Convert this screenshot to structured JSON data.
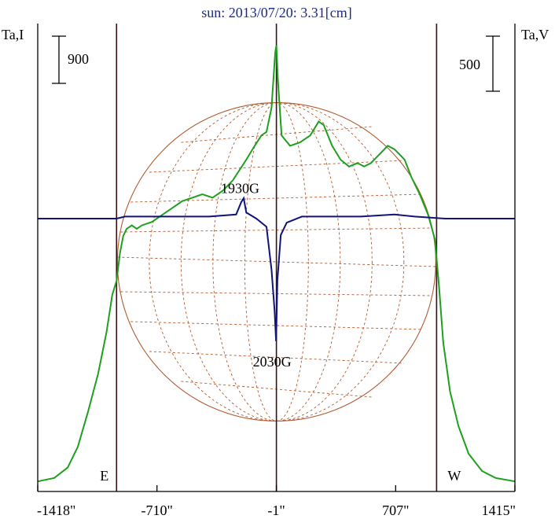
{
  "chart_data": {
    "type": "line",
    "title": "sun: 2013/07/20: 3.31[cm]",
    "left_axis_label": "Ta,I",
    "right_axis_label": "Ta,V",
    "left_scale_bar_label": "900",
    "right_scale_bar_label": "500",
    "x_tick_labels": [
      "-1418\"",
      "-710\"",
      "-1\"",
      "707\"",
      "1415\""
    ],
    "x_ticks": [
      -1418,
      -710,
      -1,
      707,
      1415
    ],
    "xlim": [
      -1418,
      1415
    ],
    "limb_markers": {
      "east": -950,
      "west": 950
    },
    "east_label": "E",
    "west_label": "W",
    "solar_radius_arcsec": 945,
    "annotations": [
      {
        "text": "1930G",
        "x": -200,
        "level": 0.84
      },
      {
        "text": "2030G",
        "x": -1,
        "level": 0.35
      }
    ],
    "colors": {
      "title": "#1a2a8a",
      "stokes_i": "#1ea01e",
      "stokes_v": "#10147a",
      "grid": "#b05a30",
      "limb_lines": "#3a1010",
      "axes": "#000000"
    },
    "series": [
      {
        "name": "Ta,I",
        "values": [
          [
            -1418,
            0.02
          ],
          [
            -1320,
            0.03
          ],
          [
            -1240,
            0.06
          ],
          [
            -1180,
            0.12
          ],
          [
            -1120,
            0.22
          ],
          [
            -1060,
            0.33
          ],
          [
            -1010,
            0.45
          ],
          [
            -975,
            0.56
          ],
          [
            -950,
            0.6
          ],
          [
            -930,
            0.68
          ],
          [
            -910,
            0.73
          ],
          [
            -890,
            0.75
          ],
          [
            -860,
            0.76
          ],
          [
            -830,
            0.75
          ],
          [
            -800,
            0.76
          ],
          [
            -740,
            0.77
          ],
          [
            -680,
            0.79
          ],
          [
            -620,
            0.81
          ],
          [
            -560,
            0.83
          ],
          [
            -500,
            0.84
          ],
          [
            -440,
            0.85
          ],
          [
            -380,
            0.84
          ],
          [
            -320,
            0.86
          ],
          [
            -260,
            0.89
          ],
          [
            -220,
            0.92
          ],
          [
            -180,
            0.95
          ],
          [
            -130,
            0.99
          ],
          [
            -90,
            1.02
          ],
          [
            -60,
            1.03
          ],
          [
            -30,
            1.1
          ],
          [
            -8,
            1.26
          ],
          [
            -1,
            1.28
          ],
          [
            8,
            1.18
          ],
          [
            30,
            1.02
          ],
          [
            80,
            0.99
          ],
          [
            140,
            1.0
          ],
          [
            200,
            1.02
          ],
          [
            250,
            1.06
          ],
          [
            280,
            1.05
          ],
          [
            330,
            0.99
          ],
          [
            380,
            0.95
          ],
          [
            430,
            0.93
          ],
          [
            480,
            0.94
          ],
          [
            520,
            0.93
          ],
          [
            560,
            0.94
          ],
          [
            620,
            0.97
          ],
          [
            660,
            0.99
          ],
          [
            700,
            0.98
          ],
          [
            760,
            0.95
          ],
          [
            800,
            0.9
          ],
          [
            850,
            0.85
          ],
          [
            900,
            0.79
          ],
          [
            940,
            0.72
          ],
          [
            965,
            0.58
          ],
          [
            990,
            0.42
          ],
          [
            1030,
            0.28
          ],
          [
            1080,
            0.18
          ],
          [
            1140,
            0.1
          ],
          [
            1220,
            0.05
          ],
          [
            1300,
            0.03
          ],
          [
            1415,
            0.02
          ]
        ]
      },
      {
        "name": "Ta,V",
        "values": [
          [
            -1418,
            0.0
          ],
          [
            -1200,
            0.0
          ],
          [
            -950,
            0.0
          ],
          [
            -900,
            0.01
          ],
          [
            -400,
            0.01
          ],
          [
            -240,
            0.02
          ],
          [
            -210,
            0.08
          ],
          [
            -195,
            0.1
          ],
          [
            -180,
            0.03
          ],
          [
            -120,
            0.0
          ],
          [
            -60,
            -0.04
          ],
          [
            -30,
            -0.25
          ],
          [
            -12,
            -0.45
          ],
          [
            -3,
            -0.6
          ],
          [
            5,
            -0.3
          ],
          [
            25,
            -0.08
          ],
          [
            60,
            -0.02
          ],
          [
            150,
            0.01
          ],
          [
            300,
            0.01
          ],
          [
            500,
            0.01
          ],
          [
            700,
            0.02
          ],
          [
            820,
            0.01
          ],
          [
            1000,
            0.0
          ],
          [
            1415,
            0.0
          ]
        ]
      }
    ]
  }
}
